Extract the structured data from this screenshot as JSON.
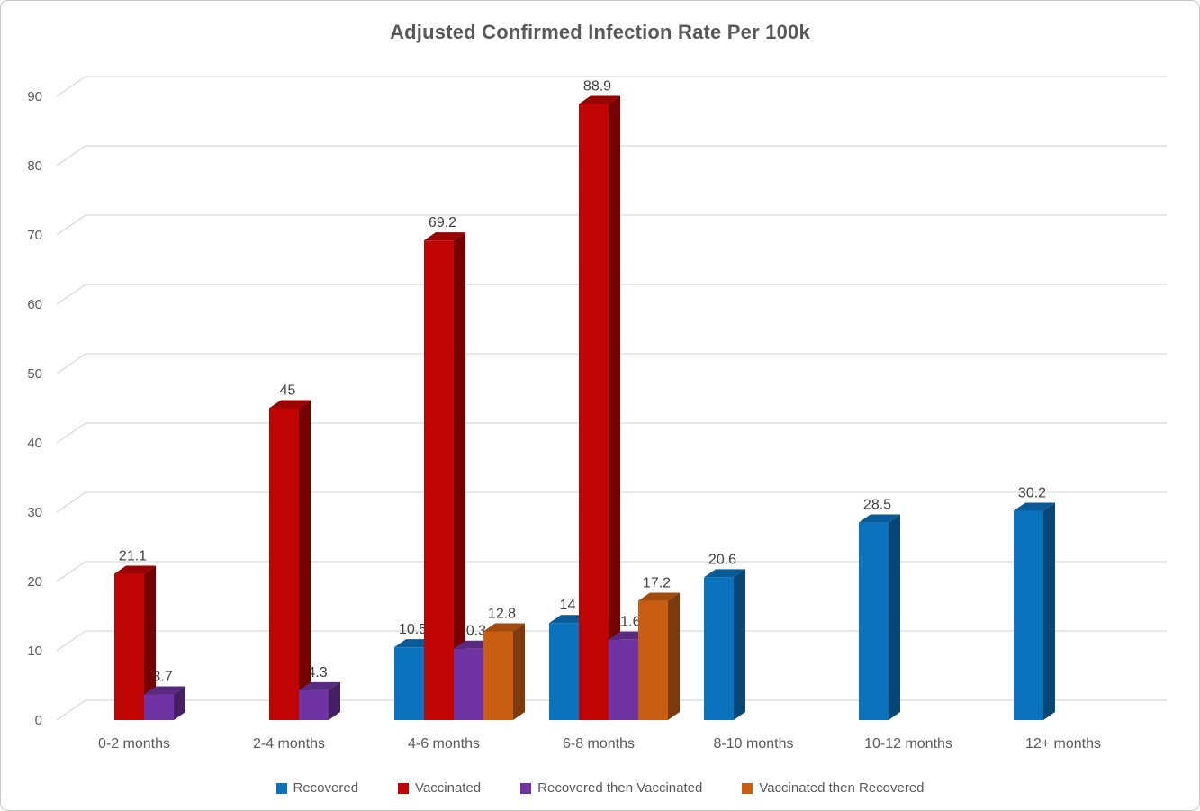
{
  "chart_data": {
    "type": "bar",
    "style": "3d-clustered-column",
    "title": "Adjusted Confirmed Infection Rate Per 100k",
    "categories": [
      "0-2 months",
      "2-4 months",
      "4-6 months",
      "6-8 months",
      "8-10 months",
      "10-12 months",
      "12+ months"
    ],
    "series": [
      {
        "name": "Recovered",
        "color": "#0B73BE",
        "values": [
          null,
          null,
          10.5,
          14,
          20.6,
          28.5,
          30.2
        ]
      },
      {
        "name": "Vaccinated",
        "color": "#C00404",
        "values": [
          21.1,
          45,
          69.2,
          88.9,
          null,
          null,
          null
        ]
      },
      {
        "name": "Recovered then Vaccinated",
        "color": "#7033A3",
        "values": [
          3.7,
          4.3,
          10.3,
          11.6,
          null,
          null,
          null
        ]
      },
      {
        "name": "Vaccinated then Recovered",
        "color": "#C95E13",
        "values": [
          null,
          null,
          12.8,
          17.2,
          null,
          null,
          null
        ]
      }
    ],
    "yticks": [
      0,
      10,
      20,
      30,
      40,
      50,
      60,
      70,
      80,
      90
    ],
    "ylim": [
      0,
      90
    ],
    "data_labels": true,
    "grid": true,
    "legend_position": "bottom",
    "colors": {
      "title_text": "#595959",
      "axis_text": "#595959",
      "value_label": "#404040",
      "gridline": "#D9D9D9",
      "background": "#FFFFFF",
      "border": "#C8C8C8"
    }
  }
}
